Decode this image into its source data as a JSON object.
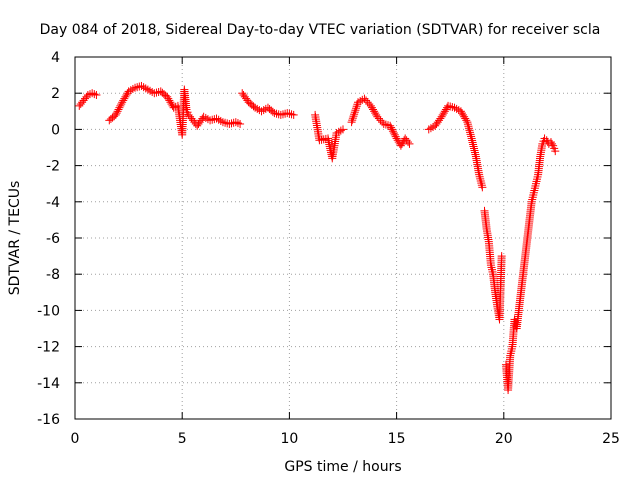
{
  "chart_data": {
    "type": "scatter",
    "title": "Day 084 of 2018, Sidereal Day-to-day VTEC variation (SDTVAR) for receiver scla",
    "xlabel": "GPS time / hours",
    "ylabel": "SDTVAR / TECUs",
    "xlim": [
      0,
      25
    ],
    "ylim": [
      -16,
      4
    ],
    "xticks": [
      0,
      5,
      10,
      15,
      20,
      25
    ],
    "yticks": [
      4,
      2,
      0,
      -2,
      -4,
      -6,
      -8,
      -10,
      -12,
      -14,
      -16
    ],
    "grid": true,
    "marker": "+",
    "marker_color": "#ff0000",
    "segments": [
      {
        "x": [
          0.2,
          0.4,
          0.6,
          0.8,
          1.0
        ],
        "y": [
          1.3,
          1.6,
          1.9,
          2.0,
          1.9
        ]
      },
      {
        "x": [
          1.6,
          1.9,
          2.2,
          2.5,
          2.8,
          3.1,
          3.4,
          3.7,
          4.0,
          4.3,
          4.6,
          4.8,
          5.0,
          5.1,
          5.2,
          5.3,
          5.5,
          5.7,
          6.0,
          6.3,
          6.6,
          6.9,
          7.2,
          7.5,
          7.7
        ],
        "y": [
          0.5,
          0.8,
          1.5,
          2.1,
          2.3,
          2.4,
          2.2,
          2.0,
          2.1,
          1.8,
          1.2,
          1.3,
          -0.3,
          2.2,
          1.1,
          0.8,
          0.5,
          0.2,
          0.7,
          0.5,
          0.6,
          0.4,
          0.3,
          0.4,
          0.3
        ]
      },
      {
        "x": [
          7.8,
          8.1,
          8.4,
          8.7,
          9.0,
          9.3,
          9.6,
          9.9,
          10.2
        ],
        "y": [
          2.0,
          1.5,
          1.2,
          1.0,
          1.2,
          0.9,
          0.8,
          0.9,
          0.8
        ]
      },
      {
        "x": [
          11.2,
          11.4,
          11.8,
          12.0,
          12.2,
          12.5
        ],
        "y": [
          0.8,
          -0.6,
          -0.5,
          -1.6,
          -0.2,
          0.0
        ]
      },
      {
        "x": [
          12.9,
          13.2,
          13.5,
          13.8,
          14.1,
          14.4,
          14.7,
          15.0,
          15.2,
          15.4,
          15.6
        ],
        "y": [
          0.4,
          1.5,
          1.7,
          1.3,
          0.7,
          0.3,
          0.2,
          -0.5,
          -0.9,
          -0.5,
          -0.8
        ]
      },
      {
        "x": [
          16.5,
          16.8,
          17.1,
          17.4,
          17.7,
          18.0,
          18.3,
          18.5,
          18.7,
          18.85,
          19.0
        ],
        "y": [
          0.0,
          0.2,
          0.7,
          1.3,
          1.2,
          1.0,
          0.4,
          -0.5,
          -1.5,
          -2.5,
          -3.2
        ]
      },
      {
        "x": [
          19.1,
          19.2,
          19.3,
          19.4,
          19.5,
          19.6,
          19.7,
          19.8,
          19.9
        ],
        "y": [
          -4.5,
          -5.5,
          -6.2,
          -7.5,
          -8.0,
          -9.0,
          -9.8,
          -10.5,
          -7.0
        ]
      },
      {
        "x": [
          20.1,
          20.2,
          20.3,
          20.4,
          20.5,
          20.6,
          20.7,
          20.8,
          20.9,
          21.0,
          21.1,
          21.2,
          21.3,
          21.4,
          21.5,
          21.6,
          21.7,
          21.8,
          21.9,
          22.0,
          22.1,
          22.2,
          22.3,
          22.4
        ],
        "y": [
          -13.0,
          -14.4,
          -12.5,
          -12.0,
          -10.5,
          -11.0,
          -10.0,
          -9.0,
          -8.0,
          -7.0,
          -6.0,
          -5.0,
          -4.0,
          -3.5,
          -3.0,
          -2.5,
          -1.5,
          -0.8,
          -0.5,
          -0.6,
          -0.8,
          -0.7,
          -0.9,
          -1.2
        ]
      }
    ]
  }
}
